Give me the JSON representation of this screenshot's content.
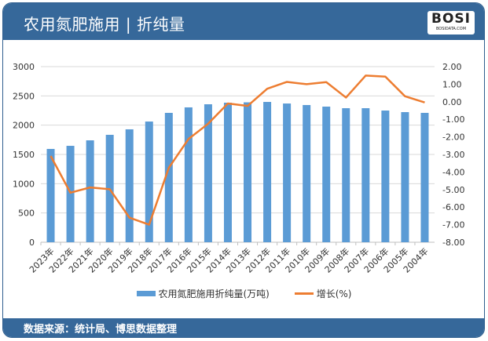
{
  "header": {
    "title": "农用氮肥施用 | 折纯量",
    "logo_text": "BOSI",
    "logo_sub": "BOSIDATA.COM"
  },
  "footer": {
    "source": "数据来源：统计局、博思数据整理"
  },
  "chart_data": {
    "type": "bar+line",
    "categories": [
      "2023年",
      "2022年",
      "2021年",
      "2020年",
      "2019年",
      "2018年",
      "2017年",
      "2016年",
      "2015年",
      "2014年",
      "2013年",
      "2012年",
      "2011年",
      "2010年",
      "2009年",
      "2008年",
      "2007年",
      "2006年",
      "2005年",
      "2004年"
    ],
    "series": [
      {
        "name": "农用氮肥施用折纯量(万吨)",
        "type": "bar",
        "axis": "left",
        "color": "#5b9bd5",
        "values": [
          1594,
          1647,
          1741,
          1835,
          1929,
          2062,
          2210,
          2304,
          2357,
          2384,
          2390,
          2397,
          2370,
          2344,
          2317,
          2290,
          2290,
          2250,
          2223,
          2210
        ]
      },
      {
        "name": "增长(%)",
        "type": "line",
        "axis": "right",
        "color": "#ed7d31",
        "values": [
          -3.09,
          -5.18,
          -4.88,
          -4.98,
          -6.6,
          -7.0,
          -3.76,
          -2.12,
          -1.25,
          -0.1,
          -0.24,
          0.74,
          1.13,
          1.0,
          1.12,
          0.24,
          1.49,
          1.43,
          0.31,
          -0.04
        ]
      }
    ],
    "y_left": {
      "min": 0,
      "max": 3000,
      "ticks": [
        "0",
        "500",
        "1000",
        "1500",
        "2000",
        "2500",
        "3000"
      ]
    },
    "y_right": {
      "min": -8,
      "max": 2,
      "ticks": [
        "-8.00",
        "-7.00",
        "-6.00",
        "-5.00",
        "-4.00",
        "-3.00",
        "-2.00",
        "-1.00",
        "0.00",
        "1.00",
        "2.00"
      ]
    },
    "grid": true,
    "legend": "bottom"
  }
}
